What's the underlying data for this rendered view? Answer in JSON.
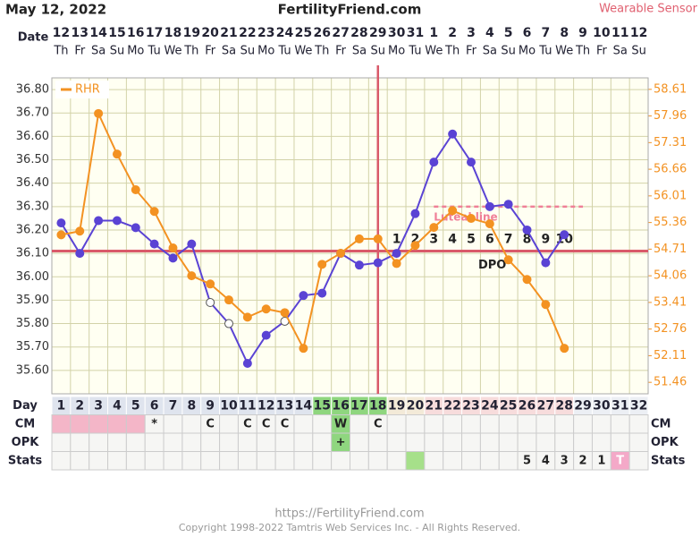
{
  "chart_data": {
    "type": "line",
    "date": "May 12, 2022",
    "title": "FertilityFriend.com",
    "subtitle": "Wearable Sensor",
    "date_label": "Date",
    "x": [
      1,
      2,
      3,
      4,
      5,
      6,
      7,
      8,
      9,
      10,
      11,
      12,
      13,
      14,
      15,
      16,
      17,
      18,
      19,
      20,
      21,
      22,
      23,
      24,
      25,
      26,
      27,
      28,
      29,
      30,
      31,
      32
    ],
    "dates": [
      "12",
      "13",
      "14",
      "15",
      "16",
      "17",
      "18",
      "19",
      "20",
      "21",
      "22",
      "23",
      "24",
      "25",
      "26",
      "27",
      "28",
      "29",
      "30",
      "31",
      "1",
      "2",
      "3",
      "4",
      "5",
      "6",
      "7",
      "8",
      "9",
      "10",
      "11",
      "12"
    ],
    "weekdays": [
      "Th",
      "Fr",
      "Sa",
      "Su",
      "Mo",
      "Tu",
      "We",
      "Th",
      "Fr",
      "Sa",
      "Su",
      "Mo",
      "Tu",
      "We",
      "Th",
      "Fr",
      "Sa",
      "Su",
      "Mo",
      "Tu",
      "We",
      "Th",
      "Fr",
      "Sa",
      "Su",
      "Mo",
      "Tu",
      "We",
      "Th",
      "Fr",
      "Sa",
      "Su"
    ],
    "xlim": [
      0.5,
      32.5
    ],
    "ylim": [
      35.5,
      36.85
    ],
    "yticks": [
      {
        "value": 36.8,
        "label": "36.80"
      },
      {
        "value": 36.7,
        "label": "36.70"
      },
      {
        "value": 36.6,
        "label": "36.60"
      },
      {
        "value": 36.5,
        "label": "36.50"
      },
      {
        "value": 36.4,
        "label": "36.40"
      },
      {
        "value": 36.3,
        "label": "36.30"
      },
      {
        "value": 36.2,
        "label": "36.20"
      },
      {
        "value": 36.1,
        "label": "36.10"
      },
      {
        "value": 36.0,
        "label": "36.00"
      },
      {
        "value": 35.9,
        "label": "35.90"
      },
      {
        "value": 35.8,
        "label": "35.80"
      },
      {
        "value": 35.7,
        "label": "35.70"
      },
      {
        "value": 35.6,
        "label": "35.60"
      }
    ],
    "y2lim": [
      51.18,
      58.89
    ],
    "y2ticks": [
      58.61,
      57.96,
      57.31,
      56.66,
      56.01,
      55.36,
      54.71,
      54.06,
      53.41,
      52.76,
      52.11,
      51.46
    ],
    "grid": true,
    "series": [
      {
        "color": "#5a43d4",
        "values": [
          36.23,
          36.1,
          36.24,
          36.24,
          36.21,
          36.14,
          36.08,
          36.14,
          35.89,
          35.8,
          35.63,
          35.75,
          35.81,
          35.92,
          35.93,
          36.1,
          36.05,
          36.06,
          36.1,
          36.27,
          36.49,
          36.61,
          36.49,
          36.3,
          36.31,
          36.2,
          36.06,
          36.18,
          null,
          null,
          null,
          null
        ],
        "hollow": [
          false,
          false,
          false,
          false,
          false,
          false,
          false,
          false,
          true,
          true,
          false,
          false,
          true,
          false,
          false,
          false,
          false,
          false,
          false,
          false,
          false,
          false,
          false,
          false,
          false,
          false,
          false,
          false,
          false,
          false,
          false,
          false
        ]
      },
      {
        "name": "RHR",
        "color": "#f39222",
        "axis": "y2",
        "values": [
          55.06,
          55.15,
          58.02,
          57.03,
          56.16,
          55.63,
          54.74,
          54.06,
          53.86,
          53.47,
          53.05,
          53.25,
          53.16,
          52.29,
          54.34,
          54.61,
          54.96,
          54.96,
          54.36,
          54.8,
          55.24,
          55.65,
          55.46,
          55.33,
          54.45,
          53.97,
          53.36,
          52.29,
          null,
          null,
          null,
          null
        ]
      }
    ],
    "coverline": 36.11,
    "ovulation_day": 18,
    "luteal_line": {
      "label": "Luteal line",
      "value": 36.3,
      "from": 21,
      "to": 29
    },
    "dpo": {
      "label": "DPO",
      "values": [
        1,
        2,
        3,
        4,
        5,
        6,
        7,
        8,
        9,
        10
      ],
      "days": [
        19,
        20,
        21,
        22,
        23,
        24,
        25,
        26,
        27,
        28
      ]
    },
    "day_row": {
      "label": "Day",
      "fills": [
        "#dfe4ee",
        "#dfe4ee",
        "#dfe4ee",
        "#dfe4ee",
        "#dfe4ee",
        "#dfe4ee",
        "#dfe4ee",
        "#dfe4ee",
        "#dfe4ee",
        "#dfe4ee",
        "#dfe4ee",
        "#dfe4ee",
        "#dfe4ee",
        "#dfe4ee",
        "#8fd67f",
        "#8fd67f",
        "#8fd67f",
        "#8fd67f",
        "#f3ead8",
        "#f3ead8",
        "#f7dcdc",
        "#f7dcdc",
        "#f7dcdc",
        "#f7dcdc",
        "#f7dcdc",
        "#f7dcdc",
        "#f7dcdc",
        "#f7dcdc",
        "#eceff4",
        "#eceff4",
        "#eceff4",
        "#eceff4"
      ]
    },
    "rows": [
      {
        "label": "CM",
        "cells": [
          null,
          null,
          null,
          null,
          null,
          "*",
          null,
          null,
          "C",
          null,
          "C",
          "C",
          "C",
          null,
          null,
          "W",
          null,
          "C",
          null,
          null,
          null,
          null,
          null,
          null,
          null,
          null,
          null,
          null,
          null,
          null,
          null,
          null
        ],
        "fills": [
          "#f4b6c8",
          "#f4b6c8",
          "#f4b6c8",
          "#f4b6c8",
          "#f4b6c8",
          null,
          null,
          null,
          null,
          null,
          null,
          null,
          null,
          null,
          null,
          "#8fd67f",
          null,
          null,
          null,
          null,
          null,
          null,
          null,
          null,
          null,
          null,
          null,
          null,
          null,
          null,
          null,
          null
        ]
      },
      {
        "label": "OPK",
        "cells": [
          null,
          null,
          null,
          null,
          null,
          null,
          null,
          null,
          null,
          null,
          null,
          null,
          null,
          null,
          null,
          "+",
          null,
          null,
          null,
          null,
          null,
          null,
          null,
          null,
          null,
          null,
          null,
          null,
          null,
          null,
          null,
          null
        ],
        "fills": [
          null,
          null,
          null,
          null,
          null,
          null,
          null,
          null,
          null,
          null,
          null,
          null,
          null,
          null,
          null,
          "#8fd67f",
          null,
          null,
          null,
          null,
          null,
          null,
          null,
          null,
          null,
          null,
          null,
          null,
          null,
          null,
          null,
          null
        ]
      },
      {
        "label": "Stats",
        "cells": [
          null,
          null,
          null,
          null,
          null,
          null,
          null,
          null,
          null,
          null,
          null,
          null,
          null,
          null,
          null,
          null,
          null,
          null,
          null,
          null,
          null,
          null,
          null,
          null,
          null,
          "5",
          "4",
          "3",
          "2",
          "1",
          "T",
          null
        ],
        "fills": [
          null,
          null,
          null,
          null,
          null,
          null,
          null,
          null,
          null,
          null,
          null,
          null,
          null,
          null,
          null,
          null,
          null,
          null,
          null,
          "#a6e08a",
          null,
          null,
          null,
          null,
          null,
          null,
          null,
          null,
          null,
          null,
          "#f4a9c8",
          null
        ]
      }
    ]
  },
  "footer": {
    "url": "https://FertilityFriend.com",
    "copyright": "Copyright 1998-2022 Tamtris Web Services Inc. - All Rights Reserved."
  }
}
